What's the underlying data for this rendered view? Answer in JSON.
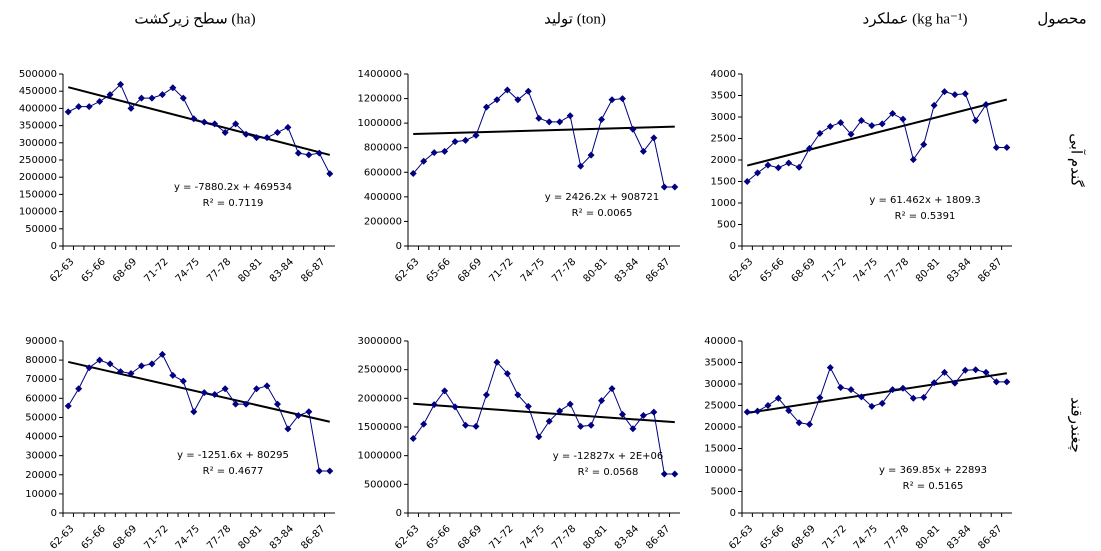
{
  "headers": {
    "columns": [
      "سطح زیرکشت (ha)",
      "تولید (ton)",
      "عملکرد (kg ha⁻¹)"
    ],
    "crop": "محصول",
    "rows": [
      "گندم آبی",
      "چغندرقند"
    ]
  },
  "chart_data": [
    {
      "type": "line",
      "color": "#000080",
      "categories": [
        "62-63",
        null,
        null,
        "65-66",
        null,
        null,
        "68-69",
        null,
        null,
        "71-72",
        null,
        null,
        "74-75",
        null,
        null,
        "77-78",
        null,
        null,
        "80-81",
        null,
        null,
        "83-84",
        null,
        null,
        "86-87",
        null
      ],
      "values": [
        390000,
        405000,
        405000,
        420000,
        440000,
        470000,
        400000,
        430000,
        430000,
        440000,
        460000,
        430000,
        370000,
        360000,
        355000,
        330000,
        355000,
        325000,
        315000,
        315000,
        330000,
        345000,
        270000,
        265000,
        270000,
        210000
      ],
      "ylim": [
        0,
        500000
      ],
      "yticks": [
        0,
        50000,
        100000,
        150000,
        200000,
        250000,
        300000,
        350000,
        400000,
        450000,
        500000
      ],
      "trendline": {
        "values": [
          461654,
          264649
        ],
        "equation": "y = -7880.2x + 469534",
        "r_squared": "R² = 0.7119"
      }
    },
    {
      "type": "line",
      "color": "#000080",
      "categories": [
        "62-63",
        null,
        null,
        "65-66",
        null,
        null,
        "68-69",
        null,
        null,
        "71-72",
        null,
        null,
        "74-75",
        null,
        null,
        "77-78",
        null,
        null,
        "80-81",
        null,
        null,
        "83-84",
        null,
        null,
        "86-87",
        null
      ],
      "values": [
        590000,
        690000,
        760000,
        770000,
        850000,
        860000,
        900000,
        1130000,
        1190000,
        1270000,
        1190000,
        1260000,
        1040000,
        1010000,
        1010000,
        1060000,
        650000,
        740000,
        1030000,
        1190000,
        1200000,
        950000,
        770000,
        880000,
        480000,
        480000
      ],
      "ylim": [
        0,
        1400000
      ],
      "yticks": [
        0,
        200000,
        400000,
        600000,
        800000,
        1000000,
        1200000,
        1400000
      ],
      "trendline": {
        "values": [
          911147,
          971802
        ],
        "equation": "y = 2426.2x + 908721",
        "r_squared": "R² = 0.0065"
      }
    },
    {
      "type": "line",
      "color": "#000080",
      "categories": [
        "62-63",
        null,
        null,
        "65-66",
        null,
        null,
        "68-69",
        null,
        null,
        "71-72",
        null,
        null,
        "74-75",
        null,
        null,
        "77-78",
        null,
        null,
        "80-81",
        null,
        null,
        "83-84",
        null,
        null,
        "86-87",
        null
      ],
      "values": [
        1500,
        1700,
        1880,
        1820,
        1930,
        1830,
        2270,
        2620,
        2780,
        2870,
        2600,
        2920,
        2800,
        2840,
        3080,
        2950,
        2010,
        2360,
        3270,
        3590,
        3520,
        3540,
        2920,
        3290,
        2290,
        2290
      ],
      "ylim": [
        0,
        4000
      ],
      "yticks": [
        0,
        500,
        1000,
        1500,
        2000,
        2500,
        3000,
        3500,
        4000
      ],
      "trendline": {
        "values": [
          1870.8,
          3407.3
        ],
        "equation": "y = 61.462x + 1809.3",
        "r_squared": "R² = 0.5391"
      }
    },
    {
      "type": "line",
      "color": "#000080",
      "categories": [
        "62-63",
        null,
        null,
        "65-66",
        null,
        null,
        "68-69",
        null,
        null,
        "71-72",
        null,
        null,
        "74-75",
        null,
        null,
        "77-78",
        null,
        null,
        "80-81",
        null,
        null,
        "83-84",
        null,
        null,
        "86-87",
        null
      ],
      "values": [
        56000,
        65000,
        76000,
        80000,
        78000,
        74000,
        73000,
        77000,
        78000,
        83000,
        72000,
        69000,
        53000,
        63000,
        62000,
        65000,
        57000,
        57000,
        65000,
        66500,
        57000,
        44000,
        51000,
        53000,
        22000,
        22000
      ],
      "ylim": [
        0,
        90000
      ],
      "yticks": [
        0,
        10000,
        20000,
        30000,
        40000,
        50000,
        60000,
        70000,
        80000,
        90000
      ],
      "trendline": {
        "values": [
          79043,
          47754
        ],
        "equation": "y = -1251.6x + 80295",
        "r_squared": "R² = 0.4677"
      }
    },
    {
      "type": "line",
      "color": "#000080",
      "categories": [
        "62-63",
        null,
        null,
        "65-66",
        null,
        null,
        "68-69",
        null,
        null,
        "71-72",
        null,
        null,
        "74-75",
        null,
        null,
        "77-78",
        null,
        null,
        "80-81",
        null,
        null,
        "83-84",
        null,
        null,
        "86-87",
        null
      ],
      "values": [
        1300000,
        1550000,
        1890000,
        2130000,
        1850000,
        1530000,
        1510000,
        2060000,
        2630000,
        2430000,
        2060000,
        1860000,
        1330000,
        1600000,
        1780000,
        1900000,
        1510000,
        1530000,
        1960000,
        2170000,
        1720000,
        1470000,
        1700000,
        1760000,
        680000,
        680000
      ],
      "ylim": [
        0,
        3000000
      ],
      "yticks": [
        0,
        500000,
        1000000,
        1500000,
        2000000,
        2500000,
        3000000
      ],
      "trendline": {
        "values": [
          1905000,
          1584000
        ],
        "equation": "y = -12827x + 2E+06",
        "r_squared": "R² = 0.0568"
      }
    },
    {
      "type": "line",
      "color": "#000080",
      "categories": [
        "62-63",
        null,
        null,
        "65-66",
        null,
        null,
        "68-69",
        null,
        null,
        "71-72",
        null,
        null,
        "74-75",
        null,
        null,
        "77-78",
        null,
        null,
        "80-81",
        null,
        null,
        "83-84",
        null,
        null,
        "86-87",
        null
      ],
      "values": [
        23500,
        23700,
        25000,
        26700,
        23800,
        21000,
        20600,
        26800,
        33800,
        29200,
        28700,
        27000,
        24800,
        25500,
        28700,
        29000,
        26700,
        26900,
        30300,
        32700,
        30200,
        33200,
        33300,
        32700,
        30500,
        30500
      ],
      "ylim": [
        0,
        40000
      ],
      "yticks": [
        0,
        5000,
        10000,
        15000,
        20000,
        25000,
        30000,
        35000,
        40000
      ],
      "trendline": {
        "values": [
          23263,
          32509
        ],
        "equation": "y = 369.85x + 22893",
        "r_squared": "R² = 0.5165"
      }
    }
  ]
}
